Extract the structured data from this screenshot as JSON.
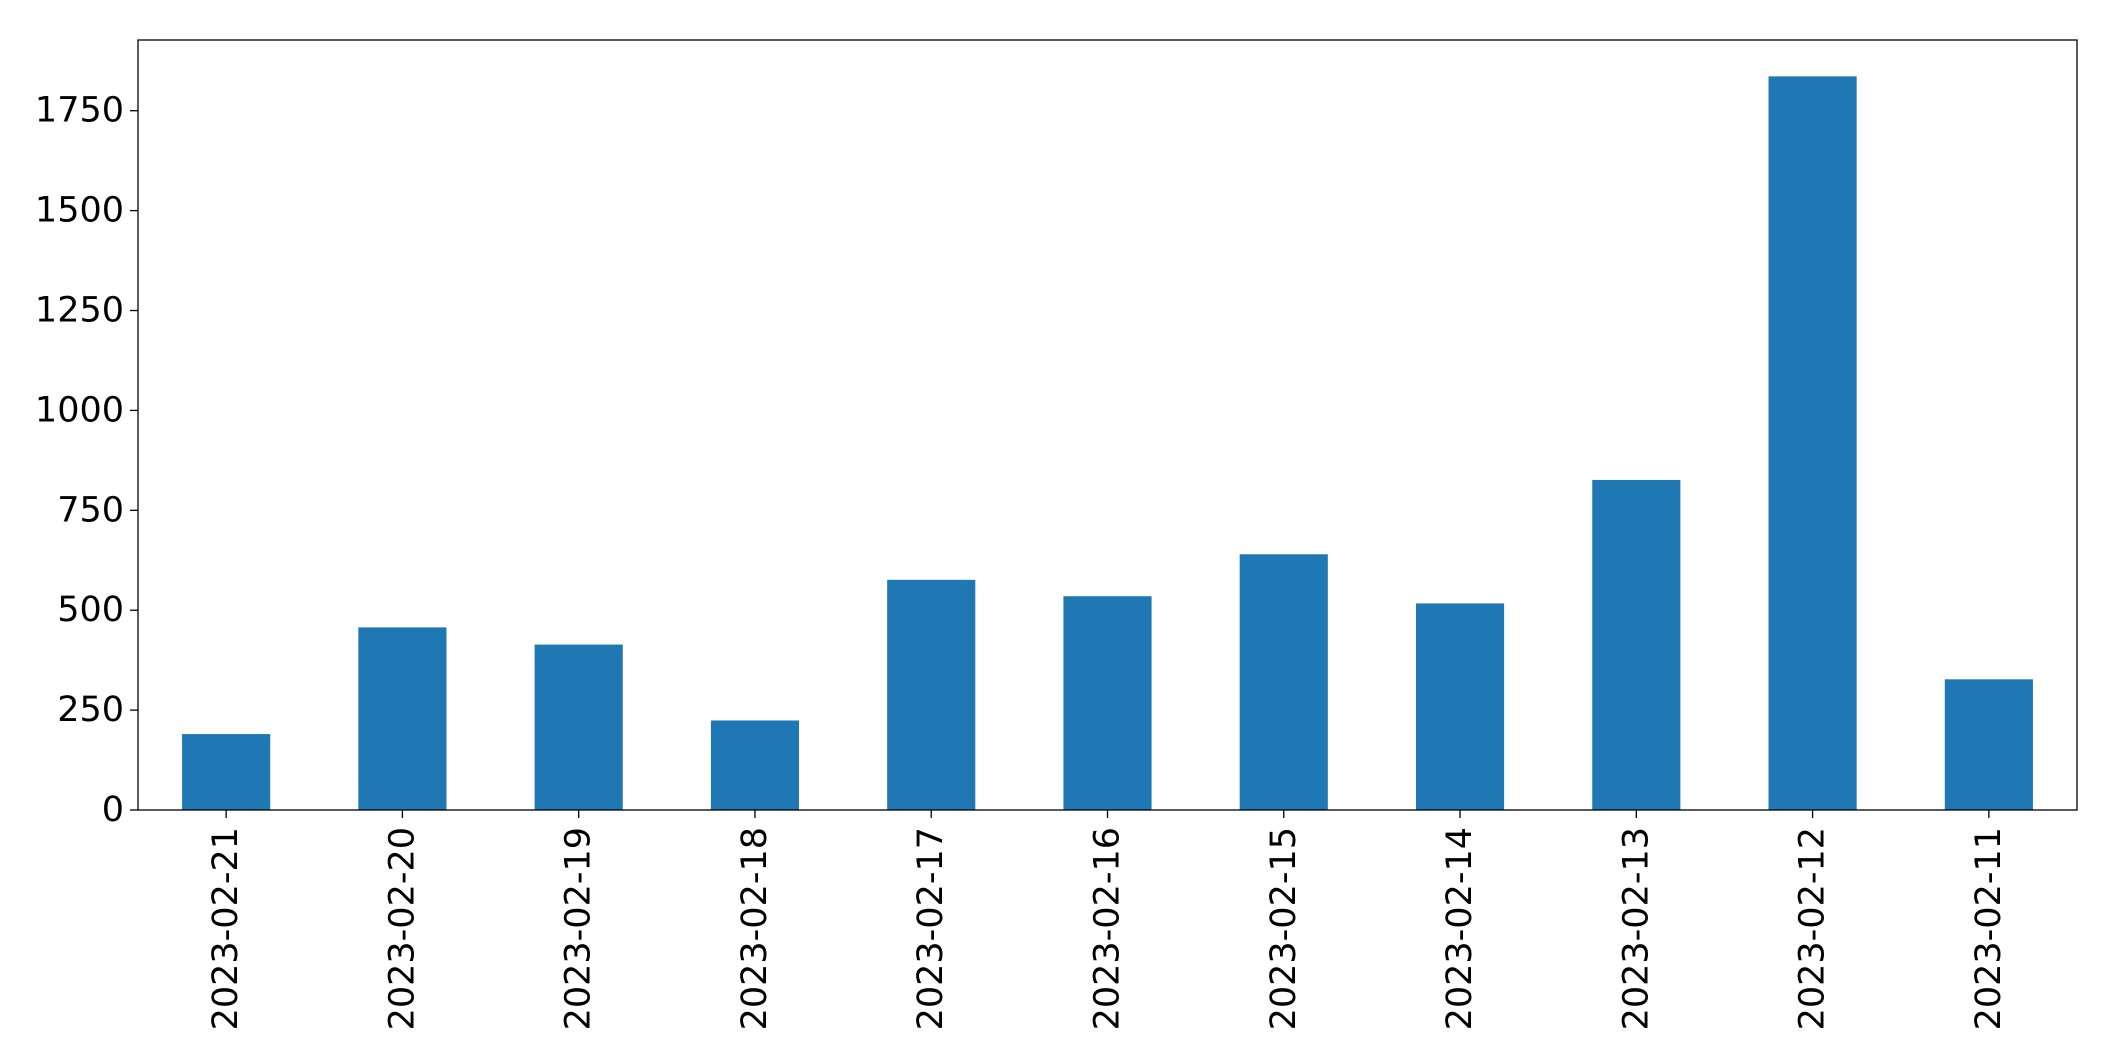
{
  "chart_data": {
    "type": "bar",
    "title": "",
    "xlabel": "",
    "ylabel": "",
    "categories": [
      "2023-02-21",
      "2023-02-20",
      "2023-02-19",
      "2023-02-18",
      "2023-02-17",
      "2023-02-16",
      "2023-02-15",
      "2023-02-14",
      "2023-02-13",
      "2023-02-12",
      "2023-02-11"
    ],
    "values": [
      190,
      457,
      414,
      224,
      576,
      535,
      640,
      517,
      826,
      1836,
      327
    ],
    "ylim": [
      0,
      1927
    ],
    "yticks": [
      0,
      250,
      500,
      750,
      1000,
      1250,
      1500,
      1750
    ],
    "ytick_labels": [
      "0",
      "250",
      "500",
      "750",
      "1000",
      "1250",
      "1500",
      "1750"
    ],
    "bar_color": "#1f77b4",
    "grid": false,
    "legend": "none"
  }
}
